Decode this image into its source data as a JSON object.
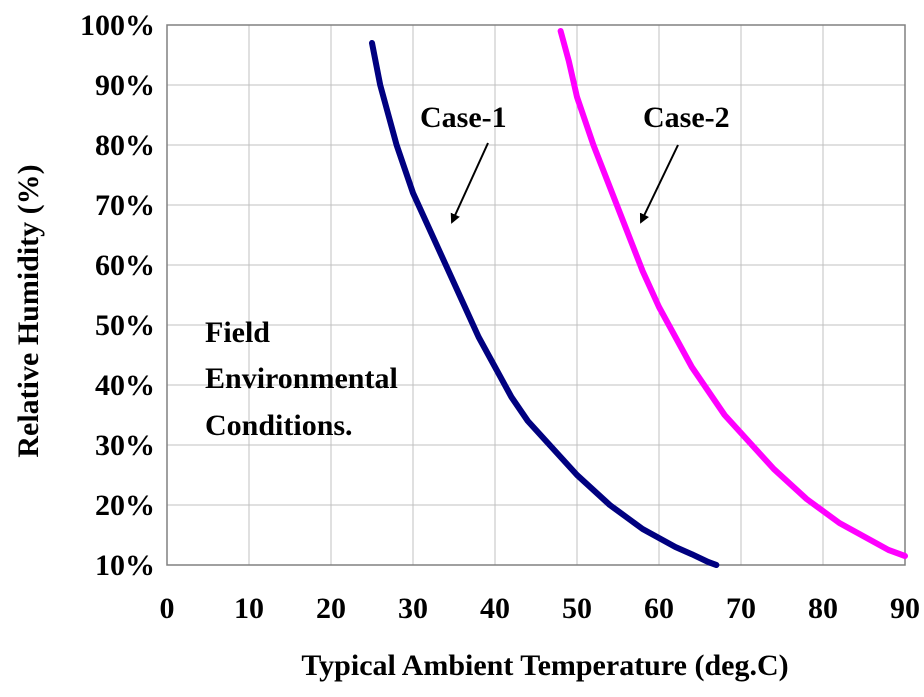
{
  "chart_data": {
    "type": "line",
    "xlabel": "Typical Ambient Temperature (deg.C)",
    "ylabel": "Relative Humidity (%)",
    "xlim": [
      0,
      90
    ],
    "ylim": [
      10,
      100
    ],
    "x_ticks": [
      "0",
      "10",
      "20",
      "30",
      "40",
      "50",
      "60",
      "70",
      "80",
      "90"
    ],
    "y_ticks": [
      "10%",
      "20%",
      "30%",
      "40%",
      "50%",
      "60%",
      "70%",
      "80%",
      "90%",
      "100%"
    ],
    "grid": true,
    "series": [
      {
        "name": "Case-1",
        "color": "#000080",
        "points": [
          [
            25,
            97
          ],
          [
            26,
            90
          ],
          [
            27,
            85
          ],
          [
            28,
            80
          ],
          [
            29,
            76
          ],
          [
            30,
            72
          ],
          [
            32,
            66
          ],
          [
            34,
            60
          ],
          [
            36,
            54
          ],
          [
            38,
            48
          ],
          [
            40,
            43
          ],
          [
            42,
            38
          ],
          [
            44,
            34
          ],
          [
            46,
            31
          ],
          [
            48,
            28
          ],
          [
            50,
            25
          ],
          [
            52,
            22.5
          ],
          [
            54,
            20
          ],
          [
            56,
            18
          ],
          [
            58,
            16
          ],
          [
            60,
            14.5
          ],
          [
            62,
            13
          ],
          [
            64,
            11.8
          ],
          [
            66,
            10.5
          ],
          [
            67,
            10
          ]
        ]
      },
      {
        "name": "Case-2",
        "color": "#FF00FF",
        "points": [
          [
            48,
            99
          ],
          [
            49,
            94
          ],
          [
            50,
            88
          ],
          [
            52,
            80
          ],
          [
            54,
            73
          ],
          [
            56,
            66
          ],
          [
            58,
            59
          ],
          [
            60,
            53
          ],
          [
            62,
            48
          ],
          [
            64,
            43
          ],
          [
            66,
            39
          ],
          [
            68,
            35
          ],
          [
            70,
            32
          ],
          [
            72,
            29
          ],
          [
            74,
            26
          ],
          [
            76,
            23.5
          ],
          [
            78,
            21
          ],
          [
            80,
            19
          ],
          [
            82,
            17
          ],
          [
            84,
            15.5
          ],
          [
            86,
            14
          ],
          [
            88,
            12.5
          ],
          [
            90,
            11.5
          ]
        ]
      }
    ],
    "annotations": [
      {
        "text": "Case-1",
        "series": "Case-1"
      },
      {
        "text": "Case-2",
        "series": "Case-2"
      }
    ],
    "note_lines": [
      "Field",
      "Environmental",
      "Conditions."
    ]
  }
}
